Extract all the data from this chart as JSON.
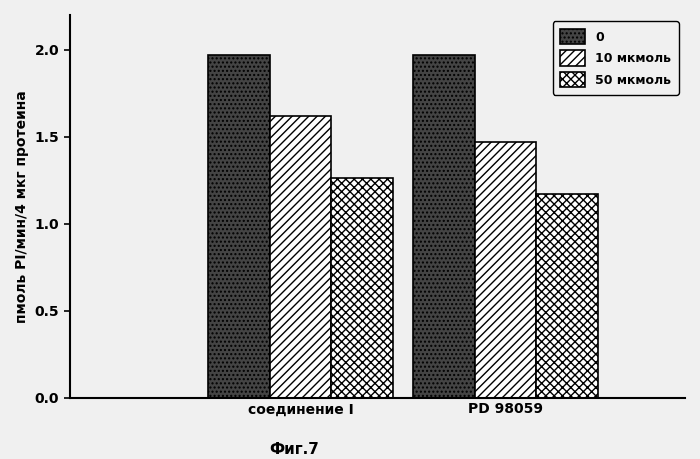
{
  "categories": [
    "соединение I",
    "PD 98059"
  ],
  "series": [
    {
      "label": "0",
      "values": [
        1.97,
        1.97
      ],
      "hatch": "....",
      "facecolor": "#444444",
      "edgecolor": "#000000"
    },
    {
      "label": "10 мкмоль",
      "values": [
        1.62,
        1.47
      ],
      "hatch": "////",
      "facecolor": "#ffffff",
      "edgecolor": "#000000"
    },
    {
      "label": "50 мкмоль",
      "values": [
        1.26,
        1.17
      ],
      "hatch": "xxxx",
      "facecolor": "#ffffff",
      "edgecolor": "#000000"
    }
  ],
  "ylabel": "пмоль PI/мин/4 мкг протеина",
  "xlabel": "Фиг.7",
  "ylim": [
    0,
    2.2
  ],
  "yticks": [
    0.0,
    0.5,
    1.0,
    1.5,
    2.0
  ],
  "bar_width": 0.12,
  "background_color": "#f0f0f0",
  "legend_fontsize": 9,
  "axis_fontsize": 10,
  "tick_fontsize": 10,
  "group_centers": [
    0.55,
    0.95
  ]
}
